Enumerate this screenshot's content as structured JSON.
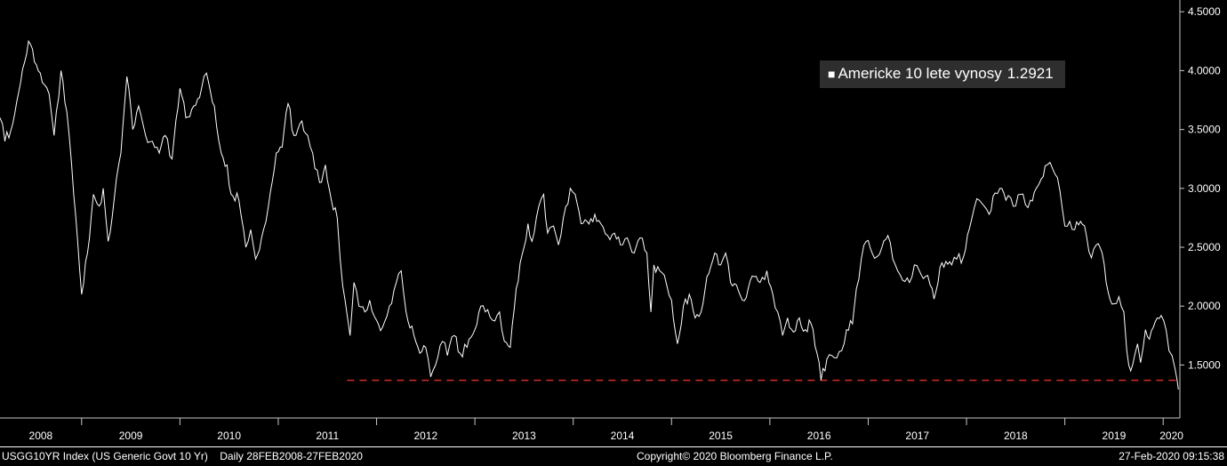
{
  "legend": {
    "marker": "■",
    "label": "Americke 10 lete vynosy",
    "value": "1.2921"
  },
  "status_bar": {
    "instrument": "USGG10YR Index (US Generic Govt 10 Yr)",
    "period": "Daily 28FEB2008-27FEB2020",
    "copyright": "Copyright© 2020 Bloomberg Finance L.P.",
    "timestamp": "27-Feb-2020 09:15:38"
  },
  "x_axis": {
    "labels": [
      "2008",
      "2009",
      "2010",
      "2011",
      "2012",
      "2013",
      "2014",
      "2015",
      "2016",
      "2017",
      "2018",
      "2019",
      "2020"
    ]
  },
  "chart_data": {
    "type": "line",
    "title": "Americke 10 lete vynosy",
    "last_value": 1.2921,
    "x_range": [
      2008.17,
      2020.17
    ],
    "ylim": [
      1.05,
      4.6
    ],
    "y_ticks": [
      1.5,
      2.0,
      2.5,
      3.0,
      3.5,
      4.0,
      4.5
    ],
    "x_ticks": [
      2009,
      2010,
      2011,
      2012,
      2013,
      2014,
      2015,
      2016,
      2017,
      2018,
      2019,
      2020
    ],
    "grid": false,
    "legend_position": "top-right",
    "background": "#000000",
    "axis_color": "#c8c8c8",
    "ref_line": {
      "value": 1.37,
      "start_x": 2011.7,
      "color": "#d42a2a",
      "style": "dashed"
    },
    "series": [
      {
        "name": "Americke 10 lete vynosy",
        "color": "#ffffff",
        "points": [
          [
            2008.17,
            3.6
          ],
          [
            2008.22,
            3.4
          ],
          [
            2008.3,
            3.55
          ],
          [
            2008.38,
            3.9
          ],
          [
            2008.46,
            4.25
          ],
          [
            2008.54,
            4.05
          ],
          [
            2008.6,
            3.9
          ],
          [
            2008.67,
            3.8
          ],
          [
            2008.72,
            3.45
          ],
          [
            2008.79,
            4.0
          ],
          [
            2008.85,
            3.65
          ],
          [
            2008.92,
            2.95
          ],
          [
            2009.0,
            2.1
          ],
          [
            2009.06,
            2.45
          ],
          [
            2009.12,
            2.95
          ],
          [
            2009.18,
            2.85
          ],
          [
            2009.22,
            3.0
          ],
          [
            2009.27,
            2.55
          ],
          [
            2009.33,
            2.9
          ],
          [
            2009.4,
            3.3
          ],
          [
            2009.46,
            3.95
          ],
          [
            2009.52,
            3.5
          ],
          [
            2009.58,
            3.7
          ],
          [
            2009.65,
            3.45
          ],
          [
            2009.72,
            3.4
          ],
          [
            2009.79,
            3.3
          ],
          [
            2009.85,
            3.45
          ],
          [
            2009.92,
            3.25
          ],
          [
            2010.0,
            3.85
          ],
          [
            2010.06,
            3.6
          ],
          [
            2010.14,
            3.7
          ],
          [
            2010.22,
            3.85
          ],
          [
            2010.27,
            3.98
          ],
          [
            2010.35,
            3.7
          ],
          [
            2010.42,
            3.3
          ],
          [
            2010.48,
            3.2
          ],
          [
            2010.52,
            2.95
          ],
          [
            2010.6,
            2.9
          ],
          [
            2010.67,
            2.5
          ],
          [
            2010.72,
            2.65
          ],
          [
            2010.77,
            2.4
          ],
          [
            2010.85,
            2.65
          ],
          [
            2010.9,
            2.85
          ],
          [
            2010.98,
            3.3
          ],
          [
            2011.04,
            3.35
          ],
          [
            2011.1,
            3.72
          ],
          [
            2011.16,
            3.45
          ],
          [
            2011.22,
            3.55
          ],
          [
            2011.3,
            3.45
          ],
          [
            2011.35,
            3.3
          ],
          [
            2011.42,
            3.05
          ],
          [
            2011.48,
            3.2
          ],
          [
            2011.54,
            2.9
          ],
          [
            2011.6,
            2.75
          ],
          [
            2011.63,
            2.4
          ],
          [
            2011.68,
            2.05
          ],
          [
            2011.73,
            1.75
          ],
          [
            2011.77,
            2.2
          ],
          [
            2011.82,
            2.0
          ],
          [
            2011.88,
            1.95
          ],
          [
            2011.93,
            2.05
          ],
          [
            2012.0,
            1.88
          ],
          [
            2012.06,
            1.82
          ],
          [
            2012.13,
            2.0
          ],
          [
            2012.2,
            2.2
          ],
          [
            2012.25,
            2.3
          ],
          [
            2012.3,
            1.95
          ],
          [
            2012.38,
            1.75
          ],
          [
            2012.44,
            1.6
          ],
          [
            2012.5,
            1.65
          ],
          [
            2012.55,
            1.4
          ],
          [
            2012.6,
            1.5
          ],
          [
            2012.67,
            1.7
          ],
          [
            2012.72,
            1.58
          ],
          [
            2012.79,
            1.75
          ],
          [
            2012.85,
            1.6
          ],
          [
            2012.92,
            1.65
          ],
          [
            2013.0,
            1.8
          ],
          [
            2013.06,
            2.0
          ],
          [
            2013.13,
            1.97
          ],
          [
            2013.18,
            1.88
          ],
          [
            2013.25,
            1.95
          ],
          [
            2013.3,
            1.7
          ],
          [
            2013.36,
            1.65
          ],
          [
            2013.42,
            2.15
          ],
          [
            2013.5,
            2.5
          ],
          [
            2013.54,
            2.7
          ],
          [
            2013.58,
            2.55
          ],
          [
            2013.65,
            2.85
          ],
          [
            2013.7,
            2.95
          ],
          [
            2013.74,
            2.62
          ],
          [
            2013.8,
            2.68
          ],
          [
            2013.85,
            2.52
          ],
          [
            2013.9,
            2.75
          ],
          [
            2013.97,
            3.0
          ],
          [
            2014.02,
            2.95
          ],
          [
            2014.08,
            2.7
          ],
          [
            2014.14,
            2.72
          ],
          [
            2014.22,
            2.78
          ],
          [
            2014.28,
            2.7
          ],
          [
            2014.35,
            2.6
          ],
          [
            2014.42,
            2.62
          ],
          [
            2014.48,
            2.52
          ],
          [
            2014.55,
            2.58
          ],
          [
            2014.62,
            2.45
          ],
          [
            2014.68,
            2.58
          ],
          [
            2014.75,
            2.45
          ],
          [
            2014.79,
            1.95
          ],
          [
            2014.82,
            2.35
          ],
          [
            2014.88,
            2.3
          ],
          [
            2014.95,
            2.18
          ],
          [
            2015.0,
            2.05
          ],
          [
            2015.06,
            1.68
          ],
          [
            2015.12,
            2.0
          ],
          [
            2015.18,
            2.1
          ],
          [
            2015.24,
            1.9
          ],
          [
            2015.3,
            1.95
          ],
          [
            2015.36,
            2.25
          ],
          [
            2015.44,
            2.45
          ],
          [
            2015.5,
            2.35
          ],
          [
            2015.55,
            2.45
          ],
          [
            2015.6,
            2.2
          ],
          [
            2015.66,
            2.18
          ],
          [
            2015.72,
            2.05
          ],
          [
            2015.78,
            2.15
          ],
          [
            2015.84,
            2.25
          ],
          [
            2015.9,
            2.2
          ],
          [
            2015.97,
            2.3
          ],
          [
            2016.03,
            2.1
          ],
          [
            2016.08,
            1.95
          ],
          [
            2016.13,
            1.75
          ],
          [
            2016.18,
            1.9
          ],
          [
            2016.24,
            1.78
          ],
          [
            2016.3,
            1.9
          ],
          [
            2016.36,
            1.8
          ],
          [
            2016.42,
            1.85
          ],
          [
            2016.48,
            1.6
          ],
          [
            2016.52,
            1.37
          ],
          [
            2016.58,
            1.55
          ],
          [
            2016.63,
            1.58
          ],
          [
            2016.68,
            1.56
          ],
          [
            2016.73,
            1.62
          ],
          [
            2016.78,
            1.8
          ],
          [
            2016.84,
            1.85
          ],
          [
            2016.88,
            2.15
          ],
          [
            2016.93,
            2.4
          ],
          [
            2016.98,
            2.55
          ],
          [
            2017.04,
            2.45
          ],
          [
            2017.09,
            2.42
          ],
          [
            2017.14,
            2.5
          ],
          [
            2017.2,
            2.6
          ],
          [
            2017.25,
            2.4
          ],
          [
            2017.3,
            2.3
          ],
          [
            2017.35,
            2.22
          ],
          [
            2017.42,
            2.2
          ],
          [
            2017.47,
            2.35
          ],
          [
            2017.52,
            2.3
          ],
          [
            2017.58,
            2.25
          ],
          [
            2017.63,
            2.18
          ],
          [
            2017.67,
            2.06
          ],
          [
            2017.73,
            2.33
          ],
          [
            2017.79,
            2.38
          ],
          [
            2017.85,
            2.35
          ],
          [
            2017.9,
            2.4
          ],
          [
            2017.97,
            2.42
          ],
          [
            2018.03,
            2.66
          ],
          [
            2018.08,
            2.84
          ],
          [
            2018.13,
            2.9
          ],
          [
            2018.18,
            2.85
          ],
          [
            2018.23,
            2.78
          ],
          [
            2018.29,
            2.96
          ],
          [
            2018.34,
            3.0
          ],
          [
            2018.4,
            2.9
          ],
          [
            2018.45,
            2.92
          ],
          [
            2018.5,
            2.85
          ],
          [
            2018.55,
            2.95
          ],
          [
            2018.6,
            2.86
          ],
          [
            2018.65,
            2.9
          ],
          [
            2018.71,
            3.0
          ],
          [
            2018.76,
            3.08
          ],
          [
            2018.82,
            3.2
          ],
          [
            2018.85,
            3.22
          ],
          [
            2018.9,
            3.12
          ],
          [
            2018.95,
            2.98
          ],
          [
            2019.0,
            2.68
          ],
          [
            2019.05,
            2.72
          ],
          [
            2019.1,
            2.65
          ],
          [
            2019.16,
            2.72
          ],
          [
            2019.22,
            2.6
          ],
          [
            2019.27,
            2.41
          ],
          [
            2019.32,
            2.52
          ],
          [
            2019.38,
            2.45
          ],
          [
            2019.44,
            2.12
          ],
          [
            2019.5,
            2.02
          ],
          [
            2019.55,
            2.08
          ],
          [
            2019.6,
            1.95
          ],
          [
            2019.63,
            1.62
          ],
          [
            2019.67,
            1.45
          ],
          [
            2019.71,
            1.58
          ],
          [
            2019.74,
            1.68
          ],
          [
            2019.77,
            1.52
          ],
          [
            2019.82,
            1.8
          ],
          [
            2019.86,
            1.72
          ],
          [
            2019.9,
            1.82
          ],
          [
            2019.94,
            1.9
          ],
          [
            2019.98,
            1.92
          ],
          [
            2020.03,
            1.8
          ],
          [
            2020.06,
            1.62
          ],
          [
            2020.09,
            1.58
          ],
          [
            2020.12,
            1.47
          ],
          [
            2020.14,
            1.38
          ],
          [
            2020.155,
            1.2921
          ]
        ]
      }
    ]
  }
}
